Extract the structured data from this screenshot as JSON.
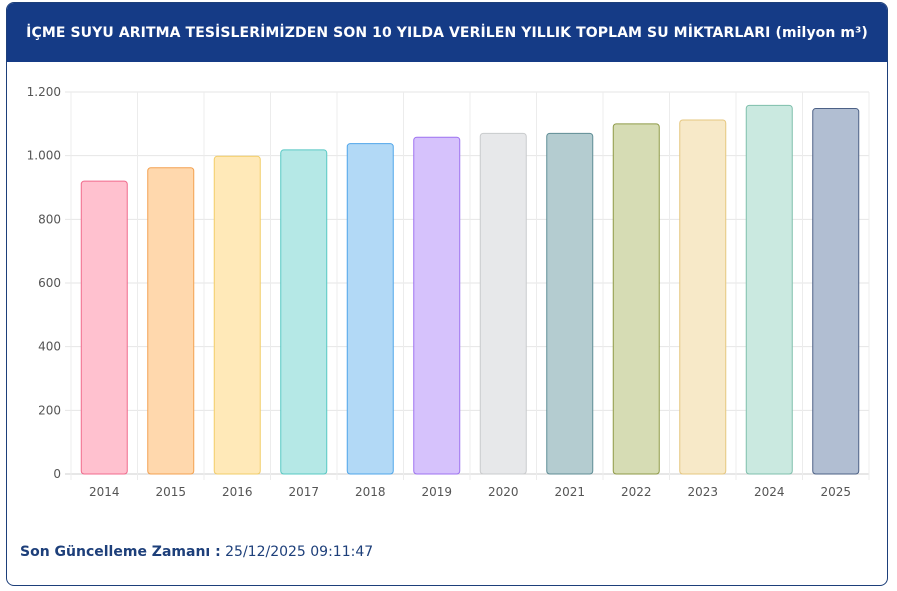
{
  "header": {
    "title": "İÇME SUYU ARITMA TESİSLERİMİZDEN SON 10 YILDA VERİLEN YILLIK TOPLAM SU MİKTARLARI (milyon m³)"
  },
  "footer": {
    "label": "Son Güncelleme Zamanı :",
    "value": " 25/12/2025 09:11:47"
  },
  "chart_data": {
    "type": "bar",
    "title": "İÇME SUYU ARITMA TESİSLERİMİZDEN SON 10 YILDA VERİLEN YILLIK TOPLAM SU MİKTARLARI (milyon m³)",
    "categories": [
      "2014",
      "2015",
      "2016",
      "2017",
      "2018",
      "2019",
      "2020",
      "2021",
      "2022",
      "2023",
      "2024",
      "2025"
    ],
    "values": [
      920,
      962,
      998,
      1018,
      1038,
      1058,
      1070,
      1070,
      1100,
      1112,
      1158,
      1148
    ],
    "ylim": [
      0,
      1200
    ],
    "yticks": [
      0,
      200,
      400,
      600,
      800,
      1000,
      1200
    ],
    "ytick_labels": [
      "0",
      "200",
      "400",
      "600",
      "800",
      "1.000",
      "1.200"
    ],
    "grid": true,
    "colors": {
      "fill": [
        "#ffc1cf",
        "#ffd8ad",
        "#ffe9b8",
        "#b5e8e6",
        "#b2d9f6",
        "#d6c2fc",
        "#e7e8ea",
        "#b4ccd0",
        "#d6dcb4",
        "#f7e9c8",
        "#cae9e0",
        "#b1bed2"
      ],
      "stroke": [
        "#f06a8c",
        "#f3a150",
        "#f2cd69",
        "#57c8c3",
        "#4fa5ea",
        "#9d72f0",
        "#c9cbcd",
        "#5f8d95",
        "#8f9a47",
        "#e6c77f",
        "#7fbfac",
        "#4d6186"
      ]
    }
  }
}
